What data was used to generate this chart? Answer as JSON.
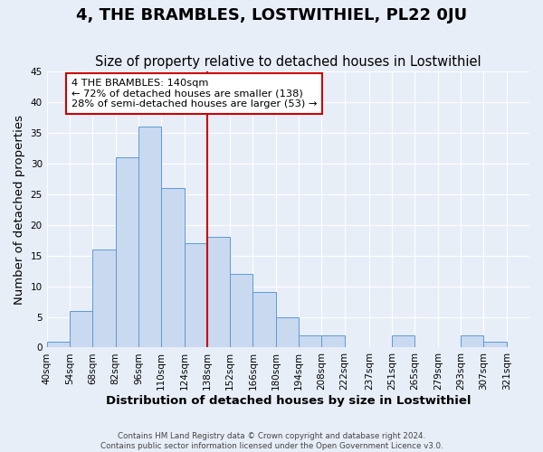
{
  "title": "4, THE BRAMBLES, LOSTWITHIEL, PL22 0JU",
  "subtitle": "Size of property relative to detached houses in Lostwithiel",
  "xlabel": "Distribution of detached houses by size in Lostwithiel",
  "ylabel": "Number of detached properties",
  "bin_labels": [
    "40sqm",
    "54sqm",
    "68sqm",
    "82sqm",
    "96sqm",
    "110sqm",
    "124sqm",
    "138sqm",
    "152sqm",
    "166sqm",
    "180sqm",
    "194sqm",
    "208sqm",
    "222sqm",
    "237sqm",
    "251sqm",
    "265sqm",
    "279sqm",
    "293sqm",
    "307sqm",
    "321sqm"
  ],
  "bin_edges": [
    40,
    54,
    68,
    82,
    96,
    110,
    124,
    138,
    152,
    166,
    180,
    194,
    208,
    222,
    237,
    251,
    265,
    279,
    293,
    307,
    321,
    335
  ],
  "bar_heights": [
    1,
    6,
    16,
    31,
    36,
    26,
    17,
    18,
    12,
    9,
    5,
    2,
    2,
    0,
    0,
    2,
    0,
    0,
    2,
    1,
    0
  ],
  "bar_color": "#c9d9f0",
  "bar_edgecolor": "#5b9bd5",
  "vline_x": 138,
  "vline_color": "#cc0000",
  "annotation_title": "4 THE BRAMBLES: 140sqm",
  "annotation_line1": "← 72% of detached houses are smaller (138)",
  "annotation_line2": "28% of semi-detached houses are larger (53) →",
  "annotation_box_color": "#cc0000",
  "ylim": [
    0,
    45
  ],
  "yticks": [
    0,
    5,
    10,
    15,
    20,
    25,
    30,
    35,
    40,
    45
  ],
  "footer1": "Contains HM Land Registry data © Crown copyright and database right 2024.",
  "footer2": "Contains public sector information licensed under the Open Government Licence v3.0.",
  "bg_color": "#e8eef8",
  "plot_bg_color": "#e8eef8",
  "grid_color": "#ffffff",
  "title_fontsize": 13,
  "subtitle_fontsize": 10.5,
  "tick_fontsize": 7.5,
  "axis_label_fontsize": 9.5
}
